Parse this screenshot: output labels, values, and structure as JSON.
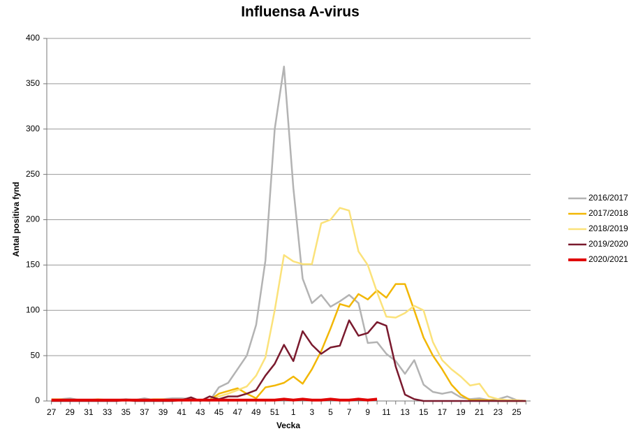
{
  "chart_data": {
    "type": "line",
    "title": "Influensa A-virus",
    "x_label": "Vecka",
    "y_label": "Antal positiva fynd",
    "categories": [
      27,
      null,
      29,
      null,
      31,
      null,
      33,
      null,
      35,
      null,
      37,
      null,
      39,
      null,
      41,
      null,
      43,
      null,
      45,
      null,
      47,
      null,
      49,
      null,
      51,
      null,
      1,
      null,
      3,
      null,
      5,
      null,
      7,
      null,
      9,
      null,
      11,
      null,
      13,
      null,
      15,
      null,
      17,
      null,
      19,
      null,
      21,
      null,
      23,
      null,
      25,
      null
    ],
    "series": [
      {
        "name": "2016/2017",
        "color": "#b3b3b3",
        "values": [
          1,
          2,
          3,
          1,
          1,
          1,
          1,
          1,
          2,
          1,
          3,
          1,
          2,
          3,
          3,
          2,
          1,
          0,
          15,
          20,
          35,
          50,
          84,
          155,
          300,
          369,
          235,
          135,
          108,
          117,
          104,
          110,
          117,
          108,
          64,
          65,
          52,
          44,
          30,
          45,
          18,
          10,
          8,
          10,
          4,
          2,
          3,
          1,
          2,
          5,
          1,
          0
        ]
      },
      {
        "name": "2017/2018",
        "color": "#f2b705",
        "values": [
          1,
          1,
          1,
          1,
          1,
          1,
          1,
          1,
          1,
          1,
          1,
          1,
          1,
          1,
          1,
          1,
          1,
          1,
          8,
          11,
          14,
          8,
          3,
          15,
          17,
          20,
          27,
          19,
          35,
          55,
          80,
          107,
          104,
          118,
          112,
          122,
          114,
          129,
          129,
          100,
          70,
          50,
          35,
          18,
          7,
          1,
          1,
          1,
          0,
          0,
          0,
          0
        ]
      },
      {
        "name": "2018/2019",
        "color": "#fbe27a",
        "values": [
          2,
          2,
          1,
          1,
          1,
          2,
          1,
          1,
          1,
          1,
          1,
          2,
          2,
          1,
          1,
          1,
          1,
          1,
          5,
          8,
          12,
          16,
          28,
          48,
          100,
          161,
          154,
          151,
          151,
          196,
          200,
          213,
          210,
          165,
          150,
          120,
          93,
          92,
          97,
          105,
          100,
          65,
          45,
          35,
          27,
          17,
          19,
          5,
          2,
          1,
          1,
          0
        ]
      },
      {
        "name": "2019/2020",
        "color": "#7a1a2e",
        "values": [
          0,
          0,
          0,
          0,
          0,
          0,
          0,
          0,
          1,
          0,
          0,
          0,
          0,
          0,
          1,
          4,
          0,
          5,
          2,
          5,
          5,
          8,
          12,
          28,
          41,
          62,
          44,
          77,
          62,
          52,
          59,
          61,
          89,
          72,
          75,
          87,
          83,
          38,
          7,
          2,
          0,
          0,
          0,
          0,
          0,
          0,
          0,
          0,
          0,
          0,
          0,
          0
        ]
      },
      {
        "name": "2020/2021",
        "color": "#e00000",
        "values": [
          1,
          1,
          1,
          1,
          1,
          1,
          1,
          1,
          1,
          1,
          1,
          1,
          1,
          1,
          1,
          1,
          1,
          1,
          1,
          1,
          1,
          1,
          1,
          1,
          1,
          2,
          1,
          2,
          1,
          1,
          2,
          1,
          1,
          2,
          1,
          2,
          null,
          null,
          null,
          null,
          null,
          null,
          null,
          null,
          null,
          null,
          null,
          null,
          null,
          null,
          null,
          null
        ]
      }
    ],
    "ylim": [
      0,
      400
    ],
    "yticks": [
      0,
      50,
      100,
      150,
      200,
      250,
      300,
      350,
      400
    ],
    "grid": true,
    "legend": "right"
  }
}
